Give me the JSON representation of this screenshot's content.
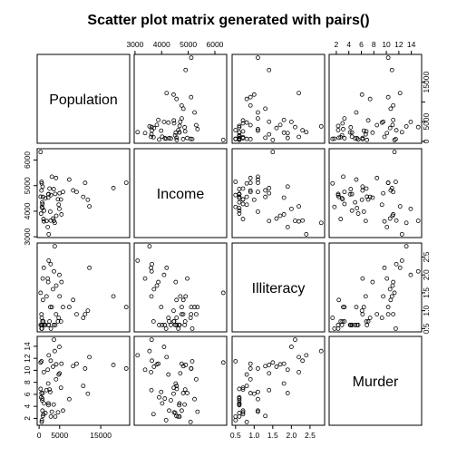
{
  "chart_data": {
    "type": "scatter",
    "title": "Scatter plot matrix generated with pairs()",
    "variables": [
      "Population",
      "Income",
      "Illiteracy",
      "Murder"
    ],
    "ranges": {
      "Population": [
        365,
        21198
      ],
      "Income": [
        3098,
        6315
      ],
      "Illiteracy": [
        0.5,
        2.8
      ],
      "Murder": [
        1.4,
        15.1
      ]
    },
    "ticks": {
      "Population": [
        0,
        5000,
        15000
      ],
      "Population_right": [
        0,
        5000,
        10000,
        15000
      ],
      "Income": [
        3000,
        4000,
        5000,
        6000
      ],
      "Illiteracy": [
        0.5,
        1.0,
        1.5,
        2.0,
        2.5
      ],
      "Murder": [
        2,
        4,
        6,
        8,
        10,
        12,
        14
      ]
    },
    "tick_labels": {
      "Population": [
        "0",
        "5000",
        "15000"
      ],
      "Population_right": [
        "0",
        "5000",
        "15000"
      ],
      "Income": [
        "3000",
        "4000",
        "5000",
        "6000"
      ],
      "Illiteracy": [
        "0.5",
        "1.0",
        "1.5",
        "2.0",
        "2.5"
      ],
      "Murder": [
        "2",
        "4",
        "6",
        "8",
        "10",
        "12",
        "14"
      ]
    },
    "data": {
      "Population": [
        3615,
        365,
        2212,
        2110,
        21198,
        2541,
        3100,
        579,
        8277,
        4931,
        868,
        813,
        11197,
        5313,
        2861,
        2280,
        3387,
        3806,
        1058,
        4122,
        5814,
        9111,
        3921,
        2341,
        4767,
        746,
        1544,
        590,
        812,
        7333,
        1144,
        18076,
        5441,
        637,
        10735,
        2715,
        2284,
        11860,
        931,
        2816,
        681,
        4173,
        12237,
        1203,
        472,
        4981,
        3559,
        1799,
        4589,
        376
      ],
      "Income": [
        3624,
        6315,
        4530,
        3378,
        5114,
        4884,
        5348,
        4809,
        4815,
        4091,
        4963,
        4119,
        5107,
        4458,
        4628,
        4669,
        3712,
        3545,
        3694,
        5299,
        4755,
        4751,
        4675,
        3098,
        4254,
        4347,
        4508,
        5149,
        4281,
        5237,
        3601,
        4903,
        3875,
        5087,
        4561,
        3983,
        4660,
        4449,
        4558,
        3635,
        4167,
        3821,
        4188,
        4022,
        3907,
        4701,
        4864,
        3617,
        4468,
        4566
      ],
      "Illiteracy": [
        2.1,
        1.5,
        1.8,
        1.9,
        1.1,
        0.7,
        1.1,
        0.9,
        1.3,
        2.0,
        1.9,
        0.6,
        0.9,
        0.7,
        0.5,
        0.6,
        1.6,
        2.8,
        0.7,
        0.9,
        1.1,
        0.9,
        0.6,
        2.4,
        0.8,
        0.6,
        0.6,
        0.5,
        0.7,
        1.1,
        2.2,
        1.4,
        1.8,
        0.8,
        0.8,
        1.1,
        0.6,
        1.0,
        1.3,
        2.3,
        0.5,
        1.7,
        2.2,
        0.6,
        0.6,
        1.4,
        0.6,
        1.4,
        0.7,
        0.6
      ],
      "Murder": [
        15.1,
        11.3,
        7.8,
        10.1,
        10.3,
        6.8,
        3.1,
        6.2,
        10.7,
        13.9,
        6.2,
        5.3,
        10.3,
        7.1,
        2.3,
        4.5,
        10.6,
        13.2,
        2.7,
        8.5,
        3.3,
        11.1,
        2.3,
        12.5,
        9.3,
        5.0,
        2.9,
        11.5,
        3.3,
        5.2,
        9.7,
        10.9,
        11.1,
        1.4,
        7.4,
        6.4,
        4.2,
        6.1,
        2.4,
        11.6,
        1.7,
        11.0,
        12.2,
        4.5,
        5.5,
        9.5,
        4.3,
        6.7,
        3.0,
        6.9
      ]
    },
    "grid": false,
    "legend": "none"
  }
}
